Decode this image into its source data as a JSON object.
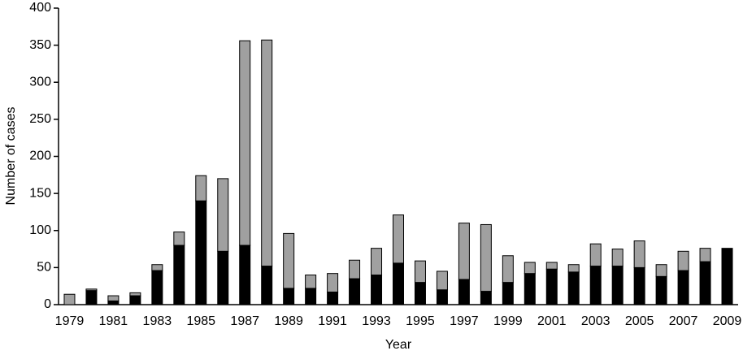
{
  "chart_data": {
    "type": "stacked_bar",
    "x_label": "Year",
    "y_label": "Number of cases",
    "categories": [
      "1979",
      null,
      "1981",
      null,
      "1983",
      null,
      "1985",
      null,
      "1987",
      null,
      "1989",
      null,
      "1991",
      null,
      "1993",
      null,
      "1995",
      null,
      "1997",
      null,
      "1999",
      null,
      "2001",
      null,
      "2003",
      null,
      "2005",
      null,
      "2007",
      null,
      "2009"
    ],
    "series": [
      {
        "color": "#000000",
        "values": [
          0,
          19,
          5,
          12,
          46,
          80,
          140,
          72,
          80,
          52,
          22,
          22,
          17,
          35,
          40,
          56,
          30,
          20,
          34,
          18,
          30,
          42,
          48,
          44,
          52,
          52,
          50,
          38,
          46,
          58,
          76
        ]
      },
      {
        "color": "#a0a0a0",
        "values": [
          14,
          2,
          7,
          4,
          8,
          18,
          34,
          98,
          276,
          305,
          74,
          18,
          25,
          25,
          36,
          65,
          29,
          25,
          76,
          90,
          36,
          15,
          9,
          10,
          30,
          23,
          36,
          16,
          26,
          18,
          0
        ]
      }
    ],
    "ylim": [
      0,
      400
    ],
    "yticks": [
      0,
      50,
      100,
      150,
      200,
      250,
      300,
      350,
      400
    ],
    "grid": false
  }
}
